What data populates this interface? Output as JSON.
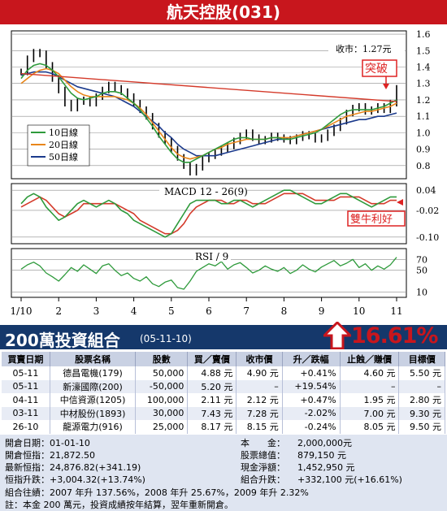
{
  "header": {
    "title": "航天控股(031)"
  },
  "chart_data": [
    {
      "type": "line",
      "panel": "price",
      "price_label": "收市：1.27元",
      "breakout_label": "突破",
      "legend": [
        "10日線",
        "20日線",
        "50日線"
      ],
      "series_colors": {
        "price": "#000000",
        "ma10": "#2e9a3b",
        "ma20": "#e8861a",
        "ma50": "#1b3a8c",
        "trend": "#d43a2a"
      },
      "x_ticks": [
        "1/10",
        "2",
        "3",
        "4",
        "5",
        "6",
        "7",
        "8",
        "9",
        "10",
        "11"
      ],
      "y_ticks": [
        "1.6",
        "1.5",
        "1.4",
        "1.3",
        "1.2",
        "1.1",
        "1.0",
        "0.9",
        "0.8"
      ],
      "ylim": [
        0.72,
        1.62
      ],
      "close": [
        1.37,
        1.45,
        1.49,
        1.48,
        1.41,
        1.33,
        1.26,
        1.18,
        1.15,
        1.19,
        1.2,
        1.18,
        1.22,
        1.26,
        1.29,
        1.27,
        1.25,
        1.22,
        1.18,
        1.14,
        1.1,
        1.04,
        0.99,
        0.95,
        0.9,
        0.85,
        0.8,
        0.76,
        0.79,
        0.84,
        0.86,
        0.88,
        0.9,
        0.92,
        0.95,
        0.98,
        1.0,
        0.97,
        0.95,
        0.96,
        0.98,
        0.97,
        0.96,
        0.95,
        0.97,
        0.99,
        0.98,
        0.96,
        0.97,
        1.0,
        1.03,
        1.07,
        1.12,
        1.15,
        1.16,
        1.13,
        1.14,
        1.16,
        1.14,
        1.18,
        1.27
      ],
      "ma10": [
        1.33,
        1.38,
        1.41,
        1.42,
        1.41,
        1.38,
        1.34,
        1.29,
        1.24,
        1.21,
        1.2,
        1.21,
        1.22,
        1.24,
        1.25,
        1.25,
        1.24,
        1.21,
        1.18,
        1.14,
        1.09,
        1.04,
        0.98,
        0.93,
        0.88,
        0.84,
        0.82,
        0.82,
        0.84,
        0.86,
        0.88,
        0.9,
        0.92,
        0.94,
        0.96,
        0.97,
        0.97,
        0.96,
        0.96,
        0.96,
        0.97,
        0.97,
        0.96,
        0.96,
        0.97,
        0.98,
        0.99,
        1.0,
        1.02,
        1.05,
        1.08,
        1.11,
        1.13,
        1.14,
        1.14,
        1.14,
        1.14,
        1.15,
        1.16,
        1.18,
        1.2
      ],
      "ma20": [
        1.3,
        1.33,
        1.36,
        1.38,
        1.39,
        1.38,
        1.36,
        1.32,
        1.28,
        1.25,
        1.23,
        1.22,
        1.22,
        1.22,
        1.22,
        1.22,
        1.21,
        1.2,
        1.18,
        1.15,
        1.11,
        1.06,
        1.01,
        0.96,
        0.91,
        0.87,
        0.85,
        0.84,
        0.85,
        0.86,
        0.88,
        0.9,
        0.91,
        0.93,
        0.94,
        0.95,
        0.96,
        0.96,
        0.96,
        0.96,
        0.97,
        0.97,
        0.97,
        0.97,
        0.98,
        0.99,
        1.0,
        1.01,
        1.02,
        1.04,
        1.06,
        1.08,
        1.1,
        1.11,
        1.12,
        1.13,
        1.13,
        1.14,
        1.15,
        1.16,
        1.18
      ],
      "ma50": [
        1.35,
        1.36,
        1.37,
        1.37,
        1.37,
        1.36,
        1.34,
        1.32,
        1.3,
        1.28,
        1.27,
        1.26,
        1.25,
        1.24,
        1.23,
        1.22,
        1.2,
        1.18,
        1.16,
        1.13,
        1.1,
        1.07,
        1.04,
        1.0,
        0.97,
        0.93,
        0.9,
        0.88,
        0.86,
        0.86,
        0.86,
        0.86,
        0.87,
        0.88,
        0.89,
        0.9,
        0.91,
        0.92,
        0.93,
        0.94,
        0.95,
        0.96,
        0.96,
        0.97,
        0.98,
        0.99,
        1.0,
        1.01,
        1.02,
        1.03,
        1.04,
        1.05,
        1.06,
        1.07,
        1.08,
        1.08,
        1.09,
        1.1,
        1.1,
        1.11,
        1.12
      ],
      "trendline": [
        [
          0,
          1.36
        ],
        [
          60,
          1.19
        ]
      ]
    },
    {
      "type": "line",
      "panel": "macd",
      "title": "MACD 12 - 26(9)",
      "signal_label": "雙牛利好",
      "y_ticks": [
        "0.04",
        "-0.02",
        "-0.10"
      ],
      "ylim": [
        -0.12,
        0.06
      ],
      "macd": [
        0.0,
        0.02,
        0.03,
        0.02,
        -0.01,
        -0.03,
        -0.05,
        -0.04,
        -0.02,
        0.0,
        0.01,
        0.0,
        -0.01,
        0.0,
        0.01,
        0.0,
        -0.02,
        -0.03,
        -0.05,
        -0.06,
        -0.07,
        -0.08,
        -0.09,
        -0.1,
        -0.09,
        -0.06,
        -0.03,
        0.0,
        0.01,
        0.01,
        0.01,
        0.01,
        0.0,
        0.0,
        0.01,
        0.01,
        0.0,
        -0.01,
        0.0,
        0.01,
        0.02,
        0.03,
        0.04,
        0.04,
        0.03,
        0.02,
        0.01,
        0.0,
        0.0,
        0.01,
        0.02,
        0.03,
        0.03,
        0.02,
        0.01,
        0.0,
        -0.01,
        0.0,
        0.01,
        0.02,
        0.02
      ],
      "signal": [
        -0.01,
        0.0,
        0.01,
        0.02,
        0.01,
        -0.01,
        -0.03,
        -0.04,
        -0.03,
        -0.02,
        0.0,
        0.0,
        0.0,
        0.0,
        0.0,
        0.0,
        -0.01,
        -0.02,
        -0.03,
        -0.05,
        -0.06,
        -0.07,
        -0.08,
        -0.09,
        -0.09,
        -0.08,
        -0.06,
        -0.03,
        -0.01,
        0.0,
        0.01,
        0.01,
        0.01,
        0.0,
        0.0,
        0.01,
        0.01,
        0.0,
        0.0,
        0.0,
        0.01,
        0.02,
        0.03,
        0.03,
        0.03,
        0.03,
        0.02,
        0.01,
        0.01,
        0.01,
        0.01,
        0.02,
        0.02,
        0.02,
        0.02,
        0.01,
        0.0,
        0.0,
        0.0,
        0.01,
        0.01
      ]
    },
    {
      "type": "line",
      "panel": "rsi",
      "title": "RSI / 9",
      "y_ticks": [
        "70",
        "50",
        "10"
      ],
      "ylim": [
        0,
        90
      ],
      "rsi": [
        52,
        60,
        65,
        58,
        45,
        38,
        30,
        42,
        55,
        48,
        60,
        52,
        44,
        58,
        62,
        50,
        40,
        45,
        35,
        30,
        38,
        25,
        20,
        28,
        32,
        18,
        15,
        30,
        48,
        55,
        62,
        58,
        66,
        52,
        60,
        64,
        55,
        45,
        50,
        58,
        52,
        48,
        55,
        44,
        50,
        60,
        52,
        47,
        56,
        62,
        68,
        58,
        63,
        70,
        55,
        62,
        50,
        58,
        52,
        60,
        74
      ]
    }
  ],
  "portfolio": {
    "title": "200萬投資組合",
    "date": "(05-11-10)",
    "return_pct": "16.61%",
    "columns": [
      "買賣日期",
      "股票名稱",
      "股數",
      "買／賣價",
      "收市價",
      "升／跌幅",
      "止蝕／賺價",
      "目標價"
    ],
    "rows": [
      [
        "05-11",
        "德昌電機(179)",
        "50,000",
        "4.88 元",
        "4.90 元",
        "+0.41%",
        "4.60 元",
        "5.50 元"
      ],
      [
        "05-11",
        "新濠國際(200)",
        "-50,000",
        "5.20 元",
        "–",
        "+19.54%",
        "–",
        "–"
      ],
      [
        "04-11",
        "中信資源(1205)",
        "100,000",
        "2.11 元",
        "2.12 元",
        "+0.47%",
        "1.95 元",
        "2.80 元"
      ],
      [
        "03-11",
        "中材股份(1893)",
        "30,000",
        "7.43 元",
        "7.28 元",
        "-2.02%",
        "7.00 元",
        "9.30 元"
      ],
      [
        "26-10",
        "龍源電力(916)",
        "25,000",
        "8.17 元",
        "8.15 元",
        "-0.24%",
        "8.05 元",
        "9.50 元"
      ]
    ]
  },
  "summary": {
    "left": [
      "開倉日期：01-01-10",
      "開倉恒指：21,872.50",
      "最新恒指：24,876.82(+341.19)",
      "恒指升跌：+3,004.32(+13.74%)"
    ],
    "right_labels": [
      "本　　金：",
      "股票總值：",
      "現金淨額：",
      "組合升跌："
    ],
    "right_values": [
      "2,000,000元",
      "879,150 元",
      "1,452,950 元",
      "+332,100 元(+16.61%)"
    ],
    "history": "組合往績：2007 年升 137.56%，2008 年升 25.67%，2009 年升 2.32%",
    "note": "註：本金 200 萬元，投資成績按年結算，翌年重新開倉。"
  }
}
